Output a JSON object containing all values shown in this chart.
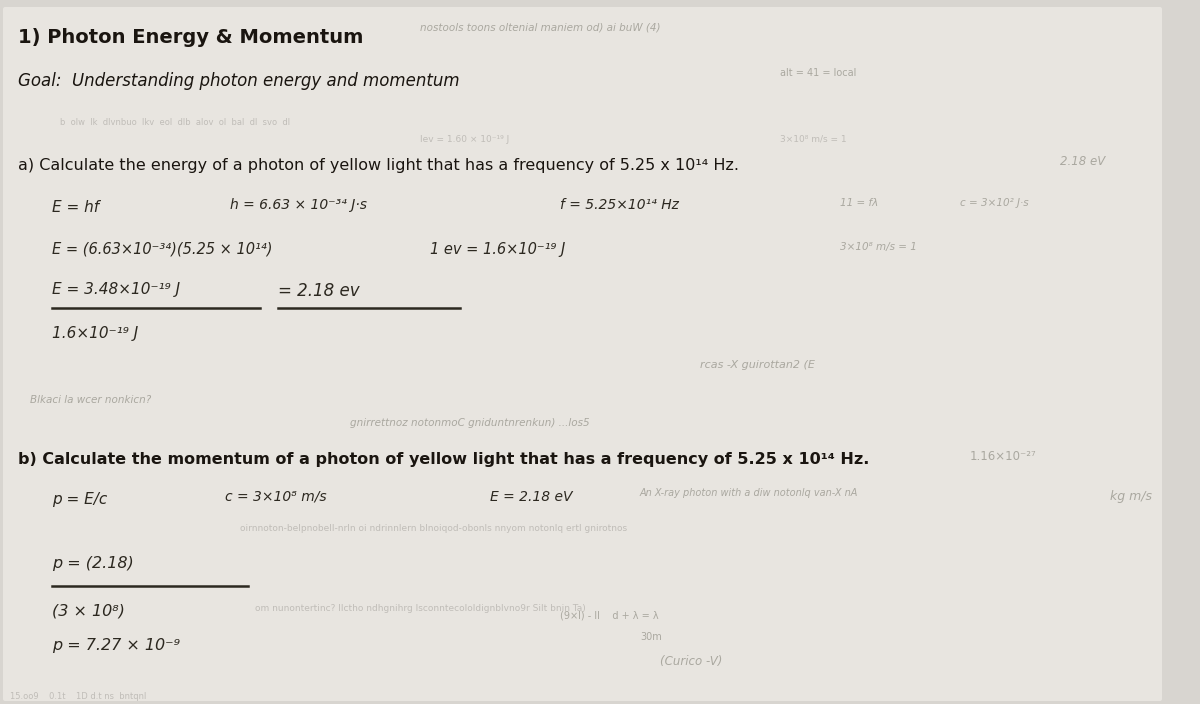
{
  "bg_color": "#d8d5d0",
  "paper_color": "#e8e5e0",
  "title": "1) Photon Energy & Momentum",
  "ghost_title": "nostools toons oltenial maniem od) ai buW (4)",
  "goal": "Goal:  Understanding photon energy and momentum",
  "part_a_q": "a) Calculate the energy of a photon of yellow light that has a frequency of 5.25 x 10¹⁴ Hz.",
  "part_a_hint": "2.18 eV",
  "part_b_q": "b) Calculate the momentum of a photon of yellow light that has a frequency of 5.25 x 10¹⁴ Hz.",
  "part_b_hint": "1.16×10⁻²⁷",
  "units_b": "kg m/s"
}
